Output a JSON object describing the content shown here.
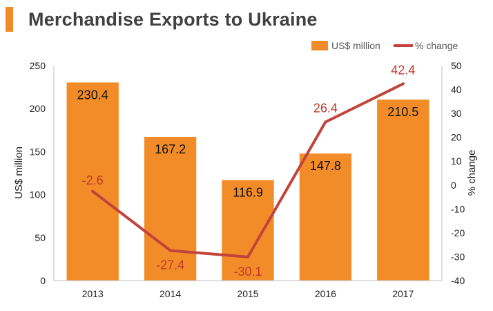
{
  "title": "Merchandise Exports to Ukraine",
  "colors": {
    "accent": "#f28c28",
    "bar": "#f28c28",
    "line": "#c0443c",
    "pct_label": "#c0392b",
    "title": "#404040"
  },
  "legend": {
    "bar_label": "US$ million",
    "line_label": "% change",
    "placement": "top-right"
  },
  "chart_data": {
    "type": "bar",
    "categories": [
      "2013",
      "2014",
      "2015",
      "2016",
      "2017"
    ],
    "series": [
      {
        "name": "US$ million",
        "type": "bar",
        "axis": "left",
        "values": [
          230.4,
          167.2,
          116.9,
          147.8,
          210.5
        ],
        "labels": [
          "230.4",
          "167.2",
          "116.9",
          "147.8",
          "210.5"
        ]
      },
      {
        "name": "% change",
        "type": "line",
        "axis": "right",
        "values": [
          -2.6,
          -27.4,
          -30.1,
          26.4,
          42.4
        ],
        "labels": [
          "-2.6",
          "-27.4",
          "-30.1",
          "26.4",
          "42.4"
        ]
      }
    ],
    "ylabel": "US$ million",
    "ylim": [
      0,
      250
    ],
    "yticks": [
      "0",
      "50",
      "100",
      "150",
      "200",
      "250"
    ],
    "y2label": "% change",
    "y2lim": [
      -40,
      50
    ],
    "y2ticks": [
      "-40",
      "-30",
      "-20",
      "-10",
      "0",
      "10",
      "20",
      "30",
      "40",
      "50"
    ],
    "grid": false
  }
}
